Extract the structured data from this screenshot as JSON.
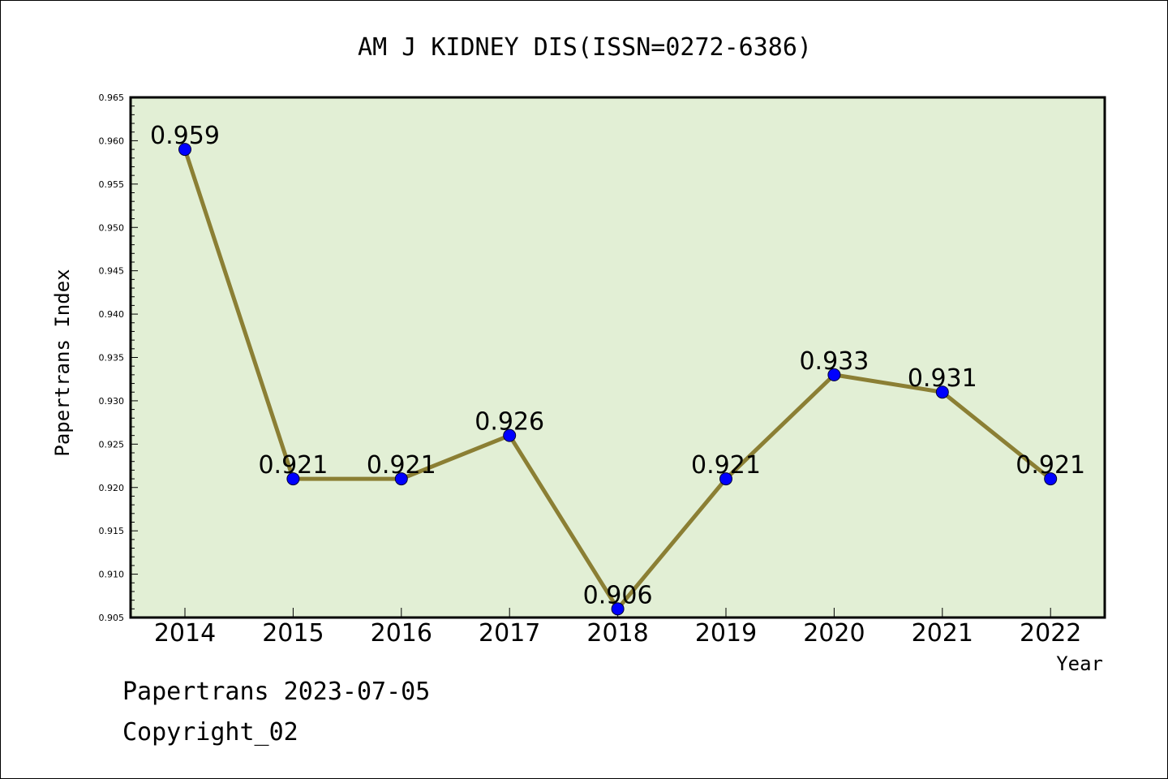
{
  "chart_data": {
    "type": "line",
    "title": "AM J KIDNEY DIS(ISSN=0272-6386)",
    "xlabel": "Year",
    "ylabel": "Papertrans Index",
    "categories": [
      "2014",
      "2015",
      "2016",
      "2017",
      "2018",
      "2019",
      "2020",
      "2021",
      "2022"
    ],
    "series": [
      {
        "values": [
          0.959,
          0.921,
          0.921,
          0.926,
          0.906,
          0.921,
          0.933,
          0.931,
          0.921
        ]
      }
    ],
    "data_labels": [
      "0.959",
      "0.921",
      "0.921",
      "0.926",
      "0.906",
      "0.921",
      "0.933",
      "0.931",
      "0.921"
    ],
    "ylim": [
      0.905,
      0.965
    ],
    "y_ticks": [
      "0.905",
      "0.910",
      "0.915",
      "0.920",
      "0.925",
      "0.930",
      "0.935",
      "0.940",
      "0.945",
      "0.950",
      "0.955",
      "0.960",
      "0.965"
    ],
    "grid": false,
    "colors": {
      "plot_background": "#e2efd5",
      "line": "#8b7f34",
      "marker": "#0000ff"
    }
  },
  "footer": {
    "source": "Papertrans 2023-07-05",
    "copyright": "Copyright_02"
  }
}
